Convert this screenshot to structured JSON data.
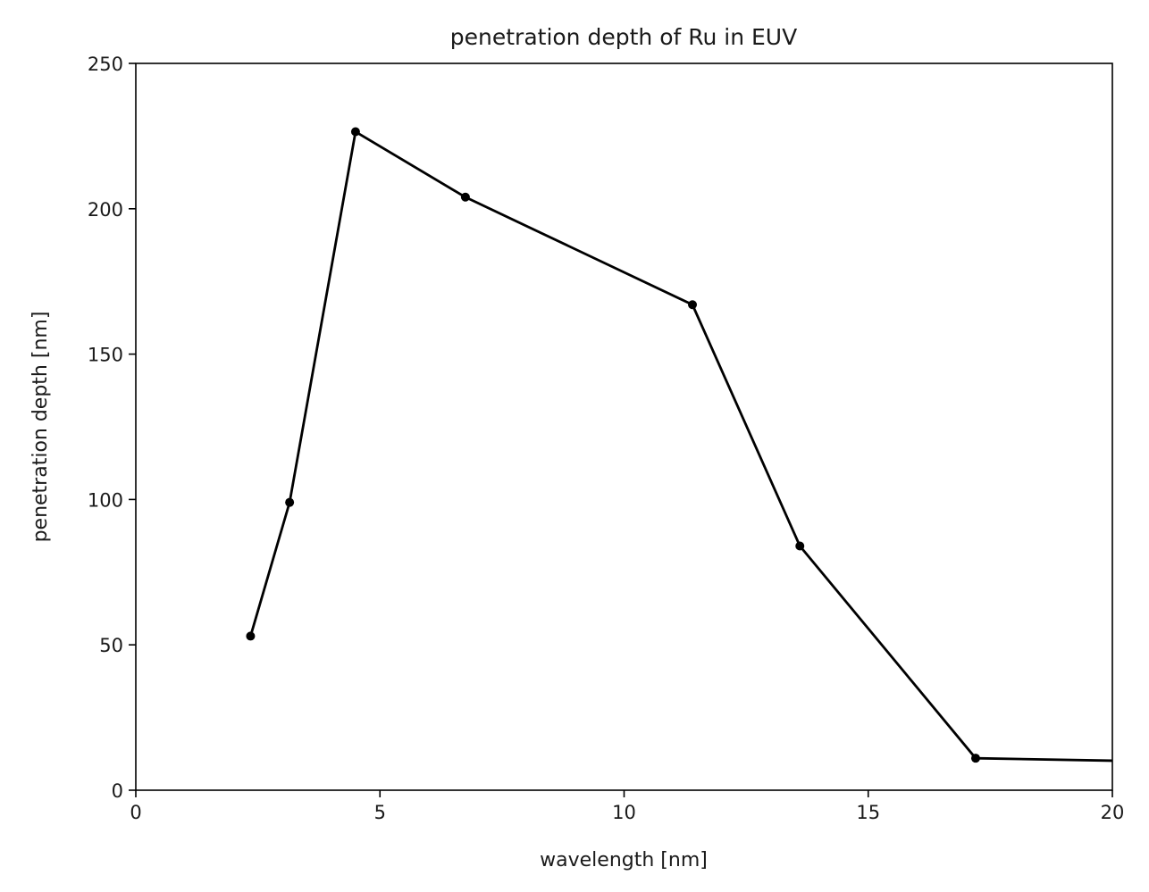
{
  "chart_data": {
    "type": "line",
    "title": "penetration depth of Ru in EUV",
    "xlabel": "wavelength [nm]",
    "ylabel": "penetration depth [nm]",
    "xlim": [
      0,
      20
    ],
    "ylim": [
      0,
      250
    ],
    "xticks": [
      0,
      5,
      10,
      15,
      20
    ],
    "yticks": [
      0,
      50,
      100,
      150,
      200,
      250
    ],
    "xtick_labels": [
      "0",
      "5",
      "10",
      "15",
      "20"
    ],
    "ytick_labels": [
      "0",
      "50",
      "100",
      "150",
      "200",
      "250"
    ],
    "grid": false,
    "line_color": "#000000",
    "series": [
      {
        "x": [
          2.35,
          3.15,
          4.5,
          6.75,
          11.4,
          13.6,
          17.2,
          20.5
        ],
        "y": [
          53,
          99,
          226.5,
          204,
          167,
          84,
          11,
          10
        ],
        "markers": [
          true,
          true,
          true,
          true,
          true,
          true,
          true,
          false
        ]
      }
    ]
  }
}
